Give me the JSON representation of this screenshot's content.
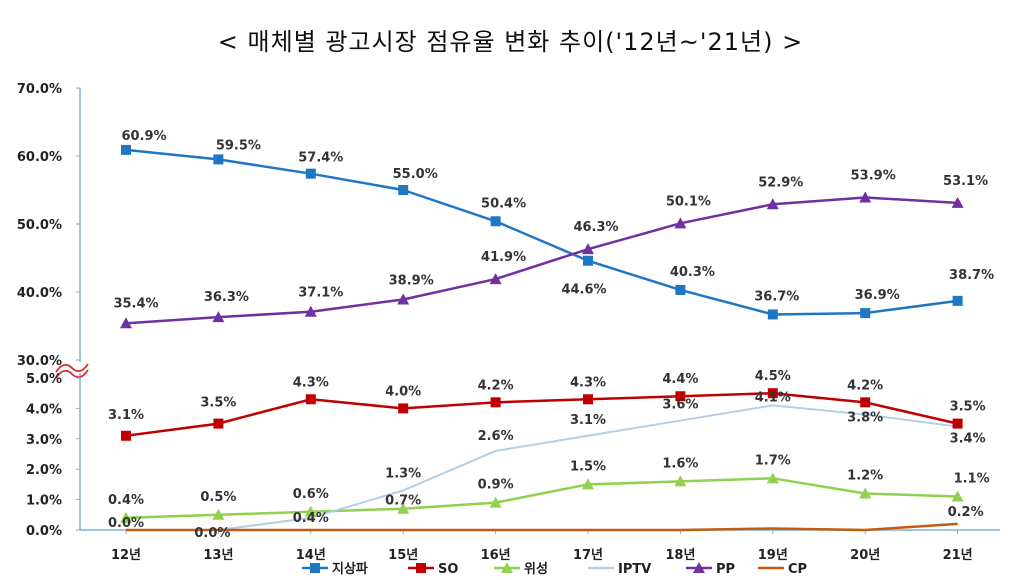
{
  "title": "< 매체별 광고시장 점유율 변화 추이('12년~'21년) >",
  "chart_data": {
    "type": "line",
    "title": "< 매체별 광고시장 점유율 변화 추이('12년~'21년) >",
    "categories": [
      "12년",
      "13년",
      "14년",
      "15년",
      "16년",
      "17년",
      "18년",
      "19년",
      "20년",
      "21년"
    ],
    "axis_break": {
      "lower_range": [
        0,
        5
      ],
      "upper_range": [
        30,
        70
      ]
    },
    "lower_ticks": [
      "0.0%",
      "1.0%",
      "2.0%",
      "3.0%",
      "4.0%",
      "5.0%"
    ],
    "upper_ticks": [
      "30.0%",
      "40.0%",
      "50.0%",
      "60.0%",
      "70.0%"
    ],
    "legend_position": "bottom",
    "series": [
      {
        "name": "지상파",
        "color": "#1f77c4",
        "marker": "square",
        "panel": "upper",
        "values": [
          60.9,
          59.5,
          57.4,
          55.0,
          50.4,
          44.6,
          40.3,
          36.7,
          36.9,
          38.7
        ],
        "labels": [
          "60.9%",
          "59.5%",
          "57.4%",
          "55.0%",
          "50.4%",
          "44.6%",
          "40.3%",
          "36.7%",
          "36.9%",
          "38.7%"
        ]
      },
      {
        "name": "PP",
        "color": "#7030a0",
        "marker": "triangle",
        "panel": "upper",
        "values": [
          35.4,
          36.3,
          37.1,
          38.9,
          41.9,
          46.3,
          50.1,
          52.9,
          53.9,
          53.1
        ],
        "labels": [
          "35.4%",
          "36.3%",
          "37.1%",
          "38.9%",
          "41.9%",
          "46.3%",
          "50.1%",
          "52.9%",
          "53.9%",
          "53.1%"
        ]
      },
      {
        "name": "SO",
        "color": "#c00000",
        "marker": "square",
        "panel": "lower",
        "values": [
          3.1,
          3.5,
          4.3,
          4.0,
          4.2,
          4.3,
          4.4,
          4.5,
          4.2,
          3.5
        ],
        "labels": [
          "3.1%",
          "3.5%",
          "4.3%",
          "4.0%",
          "4.2%",
          "4.3%",
          "4.4%",
          "4.5%",
          "4.2%",
          "3.5%"
        ]
      },
      {
        "name": "위성",
        "color": "#92d050",
        "marker": "triangle",
        "panel": "lower",
        "values": [
          0.4,
          0.5,
          0.6,
          0.7,
          0.9,
          1.5,
          1.6,
          1.7,
          1.2,
          1.1
        ],
        "labels": [
          "0.4%",
          "0.5%",
          "0.6%",
          "0.7%",
          "0.9%",
          "1.5%",
          "1.6%",
          "1.7%",
          "1.2%",
          "1.1%"
        ]
      },
      {
        "name": "IPTV",
        "color": "#b4cfe6",
        "marker": "none",
        "panel": "lower",
        "values": [
          0.0,
          0.0,
          0.4,
          1.3,
          2.6,
          3.1,
          3.6,
          4.1,
          3.8,
          3.4
        ],
        "labels": [
          "0.0%",
          "0.0%",
          "0.4%",
          "1.3%",
          "2.6%",
          "3.1%",
          "3.6%",
          "4.1%",
          "3.8%",
          "3.4%"
        ]
      },
      {
        "name": "CP",
        "color": "#c55a11",
        "marker": "none",
        "panel": "lower",
        "values": [
          0.0,
          0.0,
          0.0,
          0.0,
          0.0,
          0.0,
          0.0,
          0.05,
          0.0,
          0.2
        ],
        "labels": [
          "",
          "",
          "",
          "",
          "",
          "",
          "",
          "",
          "",
          "0.2%"
        ]
      }
    ]
  }
}
